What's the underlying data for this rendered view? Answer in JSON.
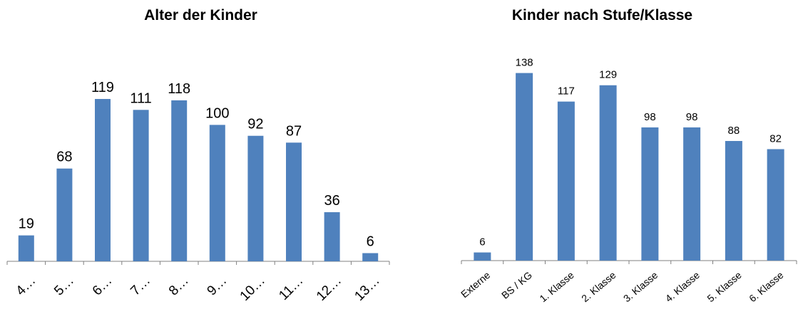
{
  "chart_data": [
    {
      "type": "bar",
      "title": "Alter der Kinder",
      "categories": [
        "4…",
        "5…",
        "6…",
        "7…",
        "8…",
        "9…",
        "10…",
        "11…",
        "12…",
        "13…"
      ],
      "values": [
        19,
        68,
        119,
        111,
        118,
        100,
        92,
        87,
        36,
        6
      ],
      "xlabel": "",
      "ylabel": "",
      "ylim": [
        0,
        140
      ],
      "grid": false,
      "legend": "none",
      "bar_color": "#4F81BD",
      "axis_color": "#808080"
    },
    {
      "type": "bar",
      "title": "Kinder nach Stufe/Klasse",
      "categories": [
        "Externe",
        "BS / KG",
        "1. Klasse",
        "2. Klasse",
        "3. Klasse",
        "4. Klasse",
        "5. Klasse",
        "6. Klasse"
      ],
      "values": [
        6,
        138,
        117,
        129,
        98,
        98,
        88,
        82
      ],
      "xlabel": "",
      "ylabel": "",
      "ylim": [
        0,
        140
      ],
      "grid": false,
      "legend": "none",
      "bar_color": "#4F81BD",
      "axis_color": "#808080"
    }
  ]
}
